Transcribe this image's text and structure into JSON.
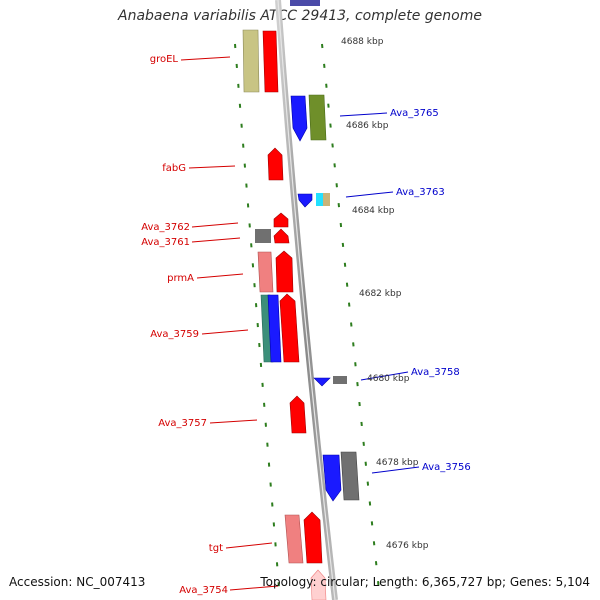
{
  "title": "Anabaena variabilis ATCC 29413, complete genome",
  "footer": {
    "accession": "Accession: NC_007413",
    "topology": "Topology: circular; Length: 6,365,727 bp; Genes: 5,104"
  },
  "colors": {
    "backbone": "#9a9a9a",
    "tick": "#2d7d1e",
    "label_reverse": "#d40000",
    "label_forward": "#0000cc",
    "kbp_text": "#333333"
  },
  "kbp_labels": [
    "4688 kbp",
    "4686 kbp",
    "4684 kbp",
    "4682 kbp",
    "4680 kbp",
    "4678 kbp",
    "4676 kbp"
  ],
  "reverse_gene_labels": [
    "groEL",
    "fabG",
    "Ava_3762",
    "Ava_3761",
    "prmA",
    "Ava_3759",
    "Ava_3757",
    "tgt",
    "Ava_3754"
  ],
  "forward_gene_labels": [
    "Ava_3765",
    "Ava_3763",
    "Ava_3758",
    "Ava_3756"
  ]
}
